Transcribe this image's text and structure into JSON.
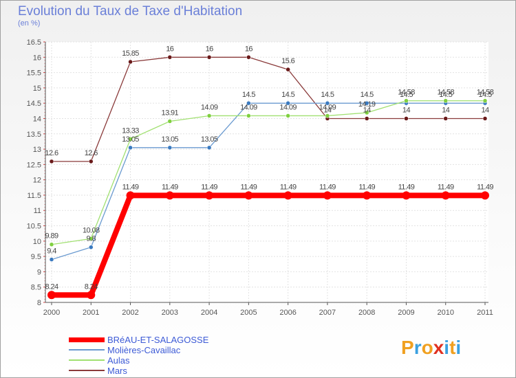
{
  "title": "Evolution du Taux de Taxe d'Habitation",
  "subtitle": "(en %)",
  "logo": {
    "text": "Proxiti",
    "letters": [
      "P",
      "r",
      "o",
      "x",
      "i",
      "t",
      "i"
    ],
    "colors": [
      "#f0a020",
      "#3aa0e0",
      "#f0a020",
      "#e03020",
      "#3aa0e0",
      "#f0a020",
      "#3aa0e0"
    ]
  },
  "chart_data": {
    "type": "line",
    "title": "Evolution du Taux de Taxe d'Habitation",
    "ylabel": "(en %)",
    "xlabel": "",
    "ylim": [
      8,
      16.5
    ],
    "yticks": [
      "8",
      "8.5",
      "9",
      "9.5",
      "10",
      "10.5",
      "11",
      "11.5",
      "12",
      "12.5",
      "13",
      "13.5",
      "14",
      "14.5",
      "15",
      "15.5",
      "16",
      "16.5"
    ],
    "x": [
      "2000",
      "2001",
      "2002",
      "2003",
      "2004",
      "2005",
      "2006",
      "2007",
      "2008",
      "2009",
      "2010",
      "2011"
    ],
    "series": [
      {
        "name": "BRéAU-ET-SALAGOSSE",
        "color": "#ff0000",
        "marker": "#ff0000",
        "values": [
          8.24,
          8.24,
          11.49,
          11.49,
          11.49,
          11.49,
          11.49,
          11.49,
          11.49,
          11.49,
          11.49,
          11.49
        ],
        "labels": [
          "8.24",
          "8.24",
          "11.49",
          "11.49",
          "11.49",
          "11.49",
          "11.49",
          "11.49",
          "11.49",
          "11.49",
          "11.49",
          "11.49"
        ]
      },
      {
        "name": "Molières-Cavaillac",
        "color": "#6a9ad0",
        "marker": "#3a7ac0",
        "values": [
          9.4,
          9.8,
          13.05,
          13.05,
          13.05,
          14.5,
          14.5,
          14.5,
          14.5,
          14.5,
          14.5,
          14.5
        ],
        "labels": [
          "9.4",
          "9.8",
          "13.05",
          "13.05",
          "13.05",
          "14.5",
          "14.5",
          "14.5",
          "14.5",
          "14.5",
          "14.5",
          "14.5"
        ]
      },
      {
        "name": "Aulas",
        "color": "#a0e070",
        "marker": "#80d040",
        "values": [
          9.89,
          10.08,
          13.33,
          13.91,
          14.09,
          14.09,
          14.09,
          14.09,
          14.19,
          14.58,
          14.58,
          14.58
        ],
        "labels": [
          "9.89",
          "10.08",
          "13.33",
          "13.91",
          "14.09",
          "14.09",
          "14.09",
          "14.09",
          "14.19",
          "14.58",
          "14.58",
          "14.58"
        ]
      },
      {
        "name": "Mars",
        "color": "#8a3a3a",
        "marker": "#6a1a1a",
        "values": [
          12.6,
          12.6,
          15.85,
          16,
          16,
          16,
          15.6,
          14,
          14,
          14,
          14,
          14
        ],
        "labels": [
          "12.6",
          "12.6",
          "15.85",
          "16",
          "16",
          "16",
          "15.6",
          "14",
          "14",
          "14",
          "14",
          "14"
        ]
      }
    ],
    "legend": [
      "BRéAU-ET-SALAGOSSE",
      "Molières-Cavaillac",
      "Aulas",
      "Mars"
    ],
    "legend_position": "bottom-left",
    "grid": true
  }
}
